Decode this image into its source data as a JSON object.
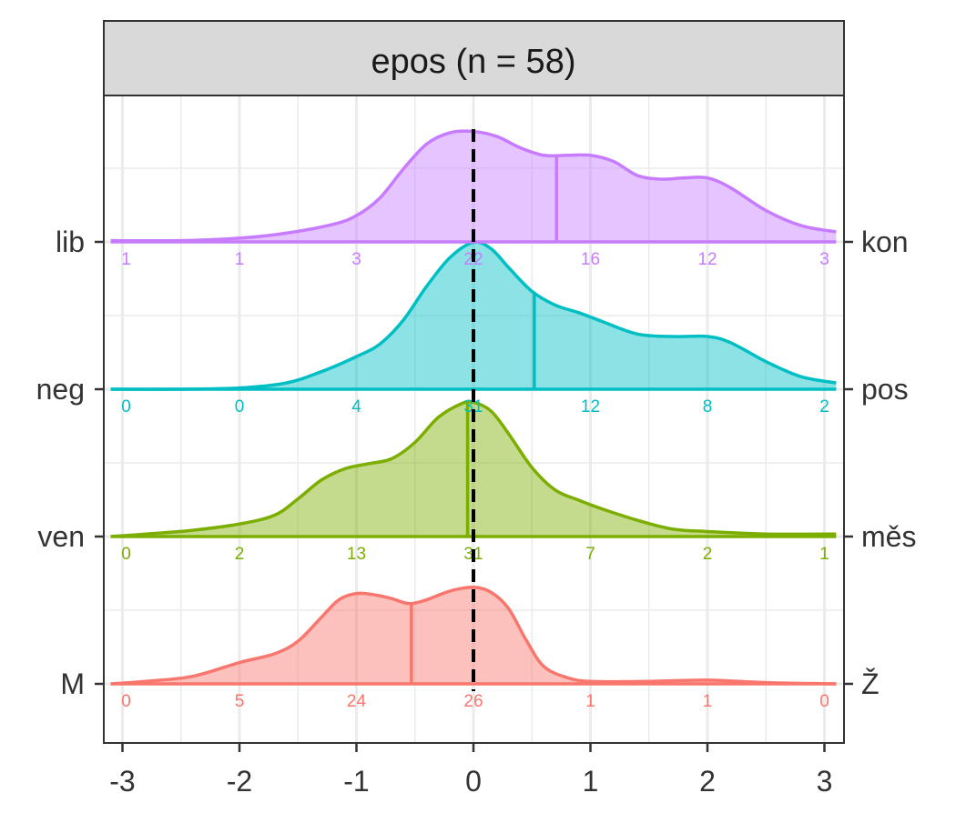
{
  "chart_data": {
    "type": "ridgeline-density",
    "title": "epos (n = 58)",
    "xlim": [
      -3,
      3
    ],
    "x_ticks": [
      "-3",
      "-2",
      "-1",
      "0",
      "1",
      "2",
      "3"
    ],
    "grid": true,
    "reference_line_x": 0,
    "series": [
      {
        "left_label": "M",
        "right_label": "Ž",
        "color": "#F8766D",
        "fill": "#F8766D",
        "median": -0.53,
        "counts": [
          "0",
          "5",
          "24",
          "26",
          "1",
          "1",
          "0"
        ],
        "density": [
          [
            -3.1,
            0.0
          ],
          [
            -2.8,
            0.02
          ],
          [
            -2.4,
            0.06
          ],
          [
            -2.0,
            0.17
          ],
          [
            -1.7,
            0.24
          ],
          [
            -1.5,
            0.34
          ],
          [
            -1.3,
            0.53
          ],
          [
            -1.15,
            0.67
          ],
          [
            -1.0,
            0.72
          ],
          [
            -0.85,
            0.71
          ],
          [
            -0.7,
            0.68
          ],
          [
            -0.55,
            0.64
          ],
          [
            -0.4,
            0.67
          ],
          [
            -0.2,
            0.74
          ],
          [
            0.0,
            0.77
          ],
          [
            0.15,
            0.73
          ],
          [
            0.3,
            0.6
          ],
          [
            0.45,
            0.35
          ],
          [
            0.6,
            0.14
          ],
          [
            0.8,
            0.05
          ],
          [
            1.0,
            0.02
          ],
          [
            1.5,
            0.02
          ],
          [
            2.0,
            0.03
          ],
          [
            2.5,
            0.01
          ],
          [
            3.1,
            0.0
          ]
        ]
      },
      {
        "left_label": "ven",
        "right_label": "měs",
        "color": "#7CAE00",
        "fill": "#7CAE00",
        "median": -0.05,
        "counts": [
          "0",
          "2",
          "13",
          "31",
          "7",
          "2",
          "1"
        ],
        "density": [
          [
            -3.1,
            0.0
          ],
          [
            -2.8,
            0.02
          ],
          [
            -2.4,
            0.05
          ],
          [
            -2.0,
            0.1
          ],
          [
            -1.7,
            0.17
          ],
          [
            -1.5,
            0.3
          ],
          [
            -1.3,
            0.45
          ],
          [
            -1.1,
            0.54
          ],
          [
            -0.9,
            0.58
          ],
          [
            -0.7,
            0.62
          ],
          [
            -0.5,
            0.75
          ],
          [
            -0.3,
            0.95
          ],
          [
            -0.1,
            1.06
          ],
          [
            0.0,
            1.07
          ],
          [
            0.15,
            1.0
          ],
          [
            0.3,
            0.82
          ],
          [
            0.5,
            0.55
          ],
          [
            0.7,
            0.37
          ],
          [
            0.9,
            0.29
          ],
          [
            1.1,
            0.22
          ],
          [
            1.4,
            0.13
          ],
          [
            1.7,
            0.06
          ],
          [
            2.0,
            0.04
          ],
          [
            2.5,
            0.02
          ],
          [
            3.1,
            0.02
          ]
        ]
      },
      {
        "left_label": "neg",
        "right_label": "pos",
        "color": "#00BFC4",
        "fill": "#00BFC4",
        "median": 0.52,
        "counts": [
          "0",
          "0",
          "4",
          "31",
          "12",
          "8",
          "2"
        ],
        "density": [
          [
            -3.1,
            0.0
          ],
          [
            -2.5,
            0.0
          ],
          [
            -2.0,
            0.01
          ],
          [
            -1.6,
            0.05
          ],
          [
            -1.3,
            0.14
          ],
          [
            -1.0,
            0.26
          ],
          [
            -0.8,
            0.36
          ],
          [
            -0.6,
            0.55
          ],
          [
            -0.4,
            0.82
          ],
          [
            -0.2,
            1.05
          ],
          [
            0.0,
            1.17
          ],
          [
            0.15,
            1.12
          ],
          [
            0.3,
            0.97
          ],
          [
            0.5,
            0.78
          ],
          [
            0.7,
            0.67
          ],
          [
            0.9,
            0.61
          ],
          [
            1.1,
            0.54
          ],
          [
            1.4,
            0.44
          ],
          [
            1.7,
            0.42
          ],
          [
            2.0,
            0.42
          ],
          [
            2.2,
            0.37
          ],
          [
            2.5,
            0.22
          ],
          [
            2.8,
            0.1
          ],
          [
            3.1,
            0.05
          ]
        ]
      },
      {
        "left_label": "lib",
        "right_label": "kon",
        "color": "#C77CFF",
        "fill": "#C77CFF",
        "median": 0.71,
        "counts": [
          "1",
          "1",
          "3",
          "22",
          "16",
          "12",
          "3"
        ],
        "density": [
          [
            -3.1,
            0.01
          ],
          [
            -2.5,
            0.01
          ],
          [
            -2.0,
            0.03
          ],
          [
            -1.6,
            0.07
          ],
          [
            -1.2,
            0.14
          ],
          [
            -1.0,
            0.21
          ],
          [
            -0.8,
            0.35
          ],
          [
            -0.6,
            0.58
          ],
          [
            -0.4,
            0.78
          ],
          [
            -0.2,
            0.87
          ],
          [
            0.0,
            0.88
          ],
          [
            0.2,
            0.84
          ],
          [
            0.4,
            0.75
          ],
          [
            0.6,
            0.69
          ],
          [
            0.8,
            0.69
          ],
          [
            1.0,
            0.69
          ],
          [
            1.2,
            0.64
          ],
          [
            1.4,
            0.53
          ],
          [
            1.6,
            0.5
          ],
          [
            1.8,
            0.51
          ],
          [
            2.0,
            0.51
          ],
          [
            2.2,
            0.43
          ],
          [
            2.5,
            0.25
          ],
          [
            2.8,
            0.13
          ],
          [
            3.1,
            0.08
          ]
        ]
      }
    ]
  }
}
